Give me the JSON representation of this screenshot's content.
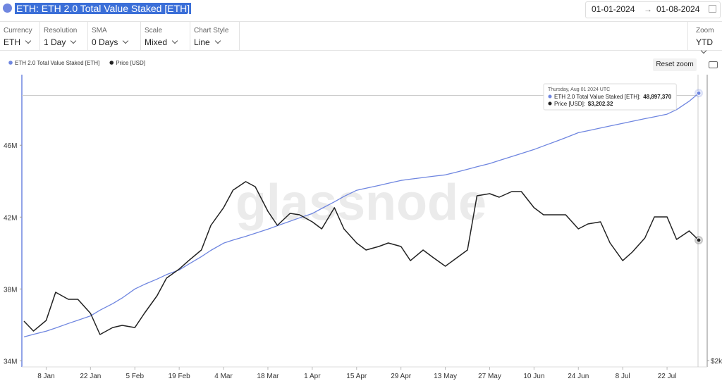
{
  "header": {
    "title": "ETH: ETH 2.0 Total Value Staked [ETH]",
    "date_from": "01-01-2024",
    "date_arrow": "→",
    "date_to": "01-08-2024"
  },
  "controls": [
    {
      "label": "Currency",
      "value": "ETH"
    },
    {
      "label": "Resolution",
      "value": "1 Day"
    },
    {
      "label": "SMA",
      "value": "0 Days"
    },
    {
      "label": "Scale",
      "value": "Mixed"
    },
    {
      "label": "Chart Style",
      "value": "Line"
    },
    {
      "label": "Zoom",
      "value": "YTD"
    }
  ],
  "reset_zoom": "Reset zoom",
  "chart_data": {
    "type": "line",
    "watermark": "glassnode",
    "x": [
      "2024-01-01",
      "2024-01-04",
      "2024-01-08",
      "2024-01-11",
      "2024-01-15",
      "2024-01-18",
      "2024-01-22",
      "2024-01-25",
      "2024-01-29",
      "2024-02-01",
      "2024-02-05",
      "2024-02-08",
      "2024-02-12",
      "2024-02-15",
      "2024-02-19",
      "2024-02-22",
      "2024-02-26",
      "2024-02-29",
      "2024-03-04",
      "2024-03-07",
      "2024-03-11",
      "2024-03-14",
      "2024-03-18",
      "2024-03-21",
      "2024-03-25",
      "2024-03-28",
      "2024-04-01",
      "2024-04-04",
      "2024-04-08",
      "2024-04-11",
      "2024-04-15",
      "2024-04-18",
      "2024-04-22",
      "2024-04-25",
      "2024-04-29",
      "2024-05-02",
      "2024-05-06",
      "2024-05-09",
      "2024-05-13",
      "2024-05-16",
      "2024-05-20",
      "2024-05-23",
      "2024-05-27",
      "2024-05-30",
      "2024-06-03",
      "2024-06-06",
      "2024-06-10",
      "2024-06-13",
      "2024-06-17",
      "2024-06-20",
      "2024-06-24",
      "2024-06-27",
      "2024-07-01",
      "2024-07-04",
      "2024-07-08",
      "2024-07-11",
      "2024-07-15",
      "2024-07-18",
      "2024-07-22",
      "2024-07-25",
      "2024-07-29",
      "2024-08-01"
    ],
    "xlim": [
      "2024-01-01",
      "2024-08-03"
    ],
    "xticks": [
      {
        "value": "2024-01-08",
        "label": "8 Jan"
      },
      {
        "value": "2024-01-22",
        "label": "22 Jan"
      },
      {
        "value": "2024-02-05",
        "label": "5 Feb"
      },
      {
        "value": "2024-02-19",
        "label": "19 Feb"
      },
      {
        "value": "2024-03-04",
        "label": "4 Mar"
      },
      {
        "value": "2024-03-18",
        "label": "18 Mar"
      },
      {
        "value": "2024-04-01",
        "label": "1 Apr"
      },
      {
        "value": "2024-04-15",
        "label": "15 Apr"
      },
      {
        "value": "2024-04-29",
        "label": "29 Apr"
      },
      {
        "value": "2024-05-13",
        "label": "13 May"
      },
      {
        "value": "2024-05-27",
        "label": "27 May"
      },
      {
        "value": "2024-06-10",
        "label": "10 Jun"
      },
      {
        "value": "2024-06-24",
        "label": "24 Jun"
      },
      {
        "value": "2024-07-08",
        "label": "8 Jul"
      },
      {
        "value": "2024-07-22",
        "label": "22 Jul"
      }
    ],
    "ylim": [
      33700000,
      49850000
    ],
    "yticks": [
      {
        "value": 34000000,
        "label": "34M"
      },
      {
        "value": 38000000,
        "label": "38M"
      },
      {
        "value": 42000000,
        "label": "42M"
      },
      {
        "value": 46000000,
        "label": "46M"
      }
    ],
    "y2lim": [
      1944,
      4840
    ],
    "y2ticks": [
      {
        "value": 2000,
        "label": "$2k"
      }
    ],
    "series": [
      {
        "name": "ETH 2.0 Total Value Staked [ETH]",
        "color": "#6f86e0",
        "axis": "y",
        "values": [
          35330000,
          35470000,
          35650000,
          35830000,
          36080000,
          36260000,
          36500000,
          36820000,
          37180000,
          37500000,
          38000000,
          38250000,
          38550000,
          38800000,
          39060000,
          39380000,
          39800000,
          40150000,
          40550000,
          40720000,
          40930000,
          41100000,
          41330000,
          41520000,
          41770000,
          41960000,
          42200000,
          42480000,
          42850000,
          43150000,
          43490000,
          43610000,
          43760000,
          43880000,
          44040000,
          44110000,
          44200000,
          44270000,
          44350000,
          44480000,
          44660000,
          44800000,
          44980000,
          45150000,
          45370000,
          45540000,
          45760000,
          45960000,
          46220000,
          46420000,
          46700000,
          46810000,
          46960000,
          47070000,
          47220000,
          47330000,
          47480000,
          47580000,
          47730000,
          47980000,
          48450000,
          48897370
        ]
      },
      {
        "name": "Price [USD]",
        "color": "#222222",
        "axis": "y2",
        "values": [
          2394,
          2295,
          2401,
          2682,
          2612,
          2612,
          2471,
          2260,
          2330,
          2352,
          2330,
          2471,
          2647,
          2823,
          2914,
          2998,
          3104,
          3350,
          3526,
          3701,
          3786,
          3736,
          3490,
          3350,
          3469,
          3455,
          3385,
          3315,
          3526,
          3315,
          3174,
          3104,
          3139,
          3174,
          3139,
          2998,
          3104,
          3033,
          2942,
          3012,
          3104,
          3645,
          3666,
          3631,
          3687,
          3687,
          3526,
          3455,
          3455,
          3455,
          3315,
          3364,
          3385,
          3174,
          2998,
          3083,
          3223,
          3434,
          3434,
          3209,
          3294,
          3202.32
        ]
      }
    ],
    "tooltip": {
      "date": "Thursday, Aug 01 2024 UTC",
      "labels": [
        "48,897,370",
        "$3,202.32"
      ]
    }
  }
}
